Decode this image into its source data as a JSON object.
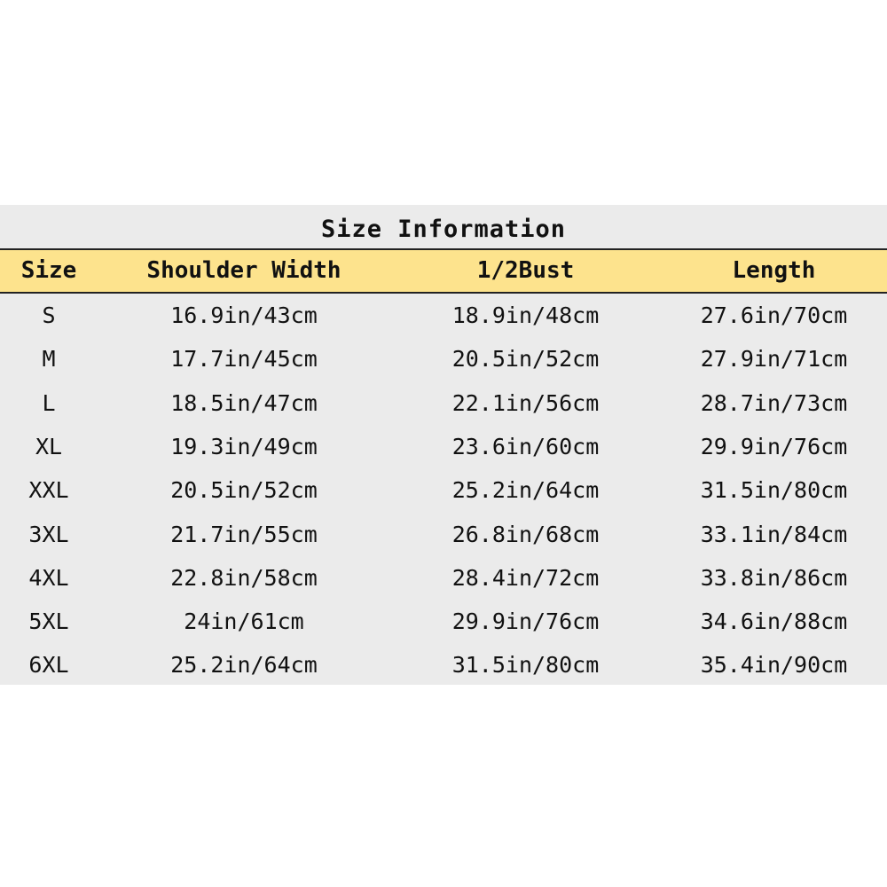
{
  "title": "Size Information",
  "headers": [
    "Size",
    "Shoulder Width",
    "1/2Bust",
    "Length"
  ],
  "rows": [
    [
      "S",
      "16.9in/43cm",
      "18.9in/48cm",
      "27.6in/70cm"
    ],
    [
      "M",
      "17.7in/45cm",
      "20.5in/52cm",
      "27.9in/71cm"
    ],
    [
      "L",
      "18.5in/47cm",
      "22.1in/56cm",
      "28.7in/73cm"
    ],
    [
      "XL",
      "19.3in/49cm",
      "23.6in/60cm",
      "29.9in/76cm"
    ],
    [
      "XXL",
      "20.5in/52cm",
      "25.2in/64cm",
      "31.5in/80cm"
    ],
    [
      "3XL",
      "21.7in/55cm",
      "26.8in/68cm",
      "33.1in/84cm"
    ],
    [
      "4XL",
      "22.8in/58cm",
      "28.4in/72cm",
      "33.8in/86cm"
    ],
    [
      "5XL",
      "24in/61cm",
      "29.9in/76cm",
      "34.6in/88cm"
    ],
    [
      "6XL",
      "25.2in/64cm",
      "31.5in/80cm",
      "35.4in/90cm"
    ]
  ],
  "colors": {
    "header_bg": "#fde38d",
    "panel_bg": "#ebebeb"
  }
}
